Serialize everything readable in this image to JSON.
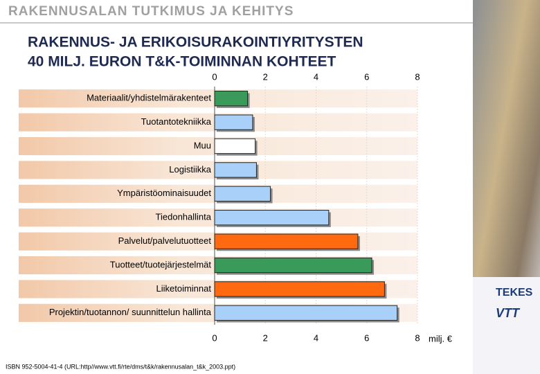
{
  "header": "RAKENNUSALAN TUTKIMUS JA KEHITYS",
  "logos": [
    "TEKES",
    "VTT"
  ],
  "footnote": "ISBN 952-5004-41-4  (URL:http//www.vtt.fi/rte/dms/t&k/rakennusalan_t&k_2003.ppt)",
  "chart_data": {
    "type": "bar",
    "orientation": "horizontal",
    "title": [
      "RAKENNUS- JA ERIKOISURAKOINTIYRITYSTEN",
      "40 MILJ. EURON T&K-TOIMINNAN KOHTEET"
    ],
    "x_label": "milj. €",
    "categories": [
      "Materiaalit/yhdistelmärakenteet",
      "Tuotantotekniikka",
      "Muu",
      "Logistiikka",
      "Ympäristöominaisuudet",
      "Tiedonhallinta",
      "Palvelut/palvelutuotteet",
      "Tuotteet/tuotejärjestelmät",
      "Liiketoiminnat",
      "Projektin/tuotannon/ suunnittelun hallinta"
    ],
    "values": [
      1.3,
      1.5,
      1.6,
      1.65,
      2.2,
      4.5,
      5.65,
      6.2,
      6.7,
      7.2
    ],
    "colors": [
      "#3a9a5a",
      "#a8d0f8",
      "#ffffff",
      "#a8d0f8",
      "#a8d0f8",
      "#a8d0f8",
      "#ff6a10",
      "#3a9a5a",
      "#ff6a10",
      "#a8d0f8"
    ],
    "xlim": [
      0,
      8
    ],
    "xticks": [
      0,
      2,
      4,
      6,
      8
    ],
    "grid": true
  }
}
